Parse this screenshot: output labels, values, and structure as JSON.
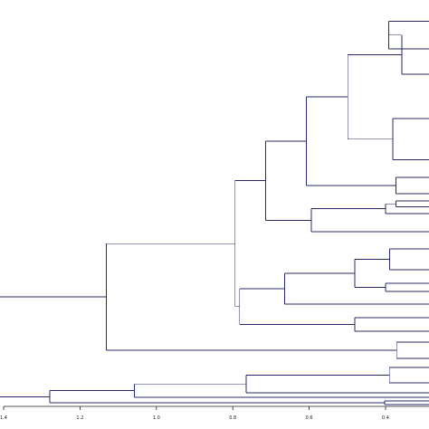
{
  "chart_data": {
    "type": "dendrogram",
    "orientation": "horizontal",
    "xaxis": {
      "reversed": true,
      "range": [
        1.4,
        0.4
      ],
      "ticks": [
        1.4,
        1.2,
        1.0,
        0.8,
        0.6,
        0.4
      ],
      "tick_labels": [
        "1.4",
        "1.2",
        "1.0",
        "0.8",
        "0.6",
        "0.4"
      ]
    },
    "line_color": "#2a2a6a",
    "axis_color": "#222222",
    "leaves": [
      {
        "id": "L1",
        "row": 23.5
      },
      {
        "id": "L2",
        "row": 54
      },
      {
        "id": "L3",
        "row": 82
      },
      {
        "id": "L4",
        "row": 131
      },
      {
        "id": "L5",
        "row": 176.5
      },
      {
        "id": "L6",
        "row": 196
      },
      {
        "id": "L7",
        "row": 214
      },
      {
        "id": "L8",
        "row": 222
      },
      {
        "id": "L9",
        "row": 228.5
      },
      {
        "id": "L10",
        "row": 236
      },
      {
        "id": "L11",
        "row": 256
      },
      {
        "id": "L12",
        "row": 275
      },
      {
        "id": "L13",
        "row": 298
      },
      {
        "id": "L14",
        "row": 313
      },
      {
        "id": "L15",
        "row": 322
      },
      {
        "id": "L16",
        "row": 336
      },
      {
        "id": "L17",
        "row": 351
      },
      {
        "id": "L18",
        "row": 366
      },
      {
        "id": "L19",
        "row": 378
      },
      {
        "id": "L20",
        "row": 396
      },
      {
        "id": "L21",
        "row": 406
      },
      {
        "id": "L22",
        "row": 423
      },
      {
        "id": "L23",
        "row": 434
      },
      {
        "id": "L24",
        "row": 439
      },
      {
        "id": "L25",
        "row": 443
      }
    ],
    "merges": [
      {
        "id": "n1",
        "height": 0.392,
        "children": [
          "L1",
          "L2"
        ]
      },
      {
        "id": "n2",
        "height": 0.357,
        "children": [
          "n1",
          "L3"
        ]
      },
      {
        "id": "n3",
        "height": 0.381,
        "children": [
          "L4",
          "L5"
        ]
      },
      {
        "id": "n4",
        "height": 0.499,
        "children": [
          "n2",
          "n3"
        ]
      },
      {
        "id": "n5",
        "height": 0.373,
        "children": [
          "L6",
          "L7"
        ]
      },
      {
        "id": "n6",
        "height": 0.607,
        "children": [
          "n4",
          "n5"
        ]
      },
      {
        "id": "n7",
        "height": 0.373,
        "children": [
          "L8",
          "L9"
        ]
      },
      {
        "id": "n8",
        "height": 0.4,
        "children": [
          "n7",
          "L10"
        ]
      },
      {
        "id": "n9",
        "height": 0.594,
        "children": [
          "n8",
          "L11"
        ]
      },
      {
        "id": "n10",
        "height": 0.714,
        "children": [
          "n6",
          "n9"
        ]
      },
      {
        "id": "n11",
        "height": 0.389,
        "children": [
          "L12",
          "L13"
        ]
      },
      {
        "id": "n12",
        "height": 0.4,
        "children": [
          "L14",
          "L15"
        ]
      },
      {
        "id": "n13",
        "height": 0.481,
        "children": [
          "n11",
          "n12"
        ]
      },
      {
        "id": "n14",
        "height": 0.664,
        "children": [
          "n13",
          "L16"
        ]
      },
      {
        "id": "n15",
        "height": 0.481,
        "children": [
          "L17",
          "L18"
        ]
      },
      {
        "id": "n16",
        "height": 0.782,
        "children": [
          "n14",
          "n15"
        ]
      },
      {
        "id": "n17",
        "height": 0.794,
        "children": [
          "n10",
          "n16"
        ]
      },
      {
        "id": "n18",
        "height": 0.371,
        "children": [
          "L19",
          "L20"
        ]
      },
      {
        "id": "n19",
        "height": 1.131,
        "children": [
          "n17",
          "n18"
        ]
      },
      {
        "id": "n20",
        "height": 0.39,
        "children": [
          "L21",
          "L22"
        ]
      },
      {
        "id": "n21",
        "height": 0.765,
        "children": [
          "n20",
          "L23"
        ]
      },
      {
        "id": "n22",
        "height": 1.058,
        "children": [
          "n21",
          "L24"
        ]
      },
      {
        "id": "n23",
        "height": 0.402,
        "children": [
          "L25",
          "L26"
        ]
      },
      {
        "id": "n24",
        "height": 1.279,
        "children": [
          "n22",
          "n23"
        ]
      },
      {
        "id": "n25",
        "height": 1.5,
        "children": [
          "n19",
          "n24"
        ]
      }
    ],
    "extra_leaves": [
      {
        "id": "L26",
        "row": 447
      }
    ]
  }
}
